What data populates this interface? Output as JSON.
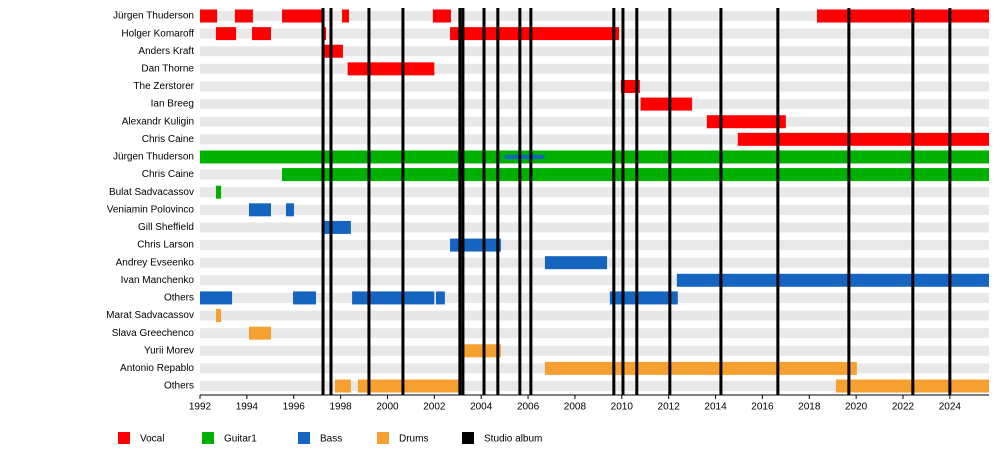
{
  "chart_data": {
    "type": "timeline",
    "xlim": [
      1992,
      2025.67
    ],
    "xticks": [
      1992,
      1994,
      1996,
      1998,
      2000,
      2002,
      2004,
      2006,
      2008,
      2010,
      2012,
      2014,
      2016,
      2018,
      2020,
      2022,
      2024
    ],
    "categories": [
      "Jürgen Thuderson",
      "Holger Komaroff",
      "Anders Kraft",
      "Dan Thorne",
      "The Zerstorer",
      "Ian Breeg",
      "Alexandr Kuligin",
      "Chris Caine",
      "Jürgen Thuderson",
      "Chris Caine",
      "Bulat Sadvacassov",
      "Veniamin Polovinco",
      "Gill Sheffield",
      "Chris Larson",
      "Andrey Evseenko",
      "Ivan Manchenko",
      "Others",
      "Marat Sadvacassov",
      "Slava Greechenco",
      "Yurii Morev",
      "Antonio Repablo",
      "Others"
    ],
    "series": [
      {
        "name": "Vocal",
        "color": "#ff0000",
        "values": [
          [
            [
              1992.0,
              1992.73
            ],
            [
              1993.49,
              1994.26
            ],
            [
              1995.5,
              1997.25
            ],
            [
              1998.06,
              1998.36
            ],
            [
              2001.94,
              2002.71
            ],
            [
              2018.33,
              2025.67
            ]
          ],
          [
            [
              1992.68,
              1993.54
            ],
            [
              1994.22,
              1995.03
            ],
            [
              1997.25,
              1997.38
            ],
            [
              2002.67,
              2009.88
            ]
          ],
          [
            [
              1997.3,
              1998.1
            ]
          ],
          [
            [
              1998.3,
              2002.0
            ]
          ],
          [
            [
              2009.96,
              2010.77
            ]
          ],
          [
            [
              2010.8,
              2013.0
            ]
          ],
          [
            [
              2013.63,
              2017.0
            ]
          ],
          [
            [
              2014.95,
              2025.67
            ]
          ],
          null,
          null,
          null,
          null,
          null,
          null,
          null,
          null,
          null,
          null,
          null,
          null,
          null,
          null
        ]
      },
      {
        "name": "Guitar1",
        "color": "#00b000",
        "values": [
          null,
          null,
          null,
          null,
          null,
          null,
          null,
          null,
          [
            [
              1992.0,
              2025.67
            ]
          ],
          [
            [
              1995.5,
              2025.67
            ]
          ],
          [
            [
              1992.68,
              1992.9
            ]
          ],
          null,
          null,
          null,
          null,
          null,
          null,
          null,
          null,
          null,
          null,
          null
        ]
      },
      {
        "name": "Bass",
        "color": "#1565c0",
        "values": [
          null,
          null,
          null,
          null,
          null,
          null,
          null,
          null,
          [
            [
              2005.0,
              2006.7
            ]
          ],
          null,
          null,
          [
            [
              1994.09,
              1995.03
            ],
            [
              1995.67,
              1996.01
            ]
          ],
          [
            [
              1997.25,
              1998.44
            ]
          ],
          [
            [
              2002.67,
              2004.84
            ]
          ],
          [
            [
              2006.72,
              2009.37
            ]
          ],
          [
            [
              2012.35,
              2025.67
            ]
          ],
          [
            [
              1992.0,
              1993.37
            ],
            [
              1995.97,
              1996.95
            ],
            [
              1998.49,
              2002.0
            ],
            [
              2002.07,
              2002.45
            ],
            [
              2009.49,
              2012.39
            ]
          ],
          null,
          null,
          null,
          null,
          null
        ]
      },
      {
        "name": "Drums",
        "color": "#f5a030",
        "values": [
          null,
          null,
          null,
          null,
          null,
          null,
          null,
          null,
          null,
          null,
          null,
          null,
          null,
          null,
          null,
          null,
          null,
          [
            [
              1992.68,
              1992.9
            ]
          ],
          [
            [
              1994.09,
              1995.03
            ]
          ],
          [
            [
              2003.14,
              2004.84
            ]
          ],
          [
            [
              2006.72,
              2020.03
            ]
          ],
          [
            [
              1997.76,
              1998.44
            ],
            [
              1998.74,
              2003.18
            ],
            [
              2019.14,
              2025.67
            ]
          ]
        ]
      }
    ],
    "albums": {
      "name": "Studio album",
      "color": "#000000",
      "x": [
        1997.25,
        1997.59,
        1999.21,
        2000.66,
        2003.09,
        2003.22,
        2004.12,
        2004.71,
        2005.65,
        2006.12,
        2009.66,
        2010.05,
        2010.64,
        2012.05,
        2014.23,
        2016.66,
        2019.69,
        2022.42,
        2024.0
      ]
    }
  }
}
